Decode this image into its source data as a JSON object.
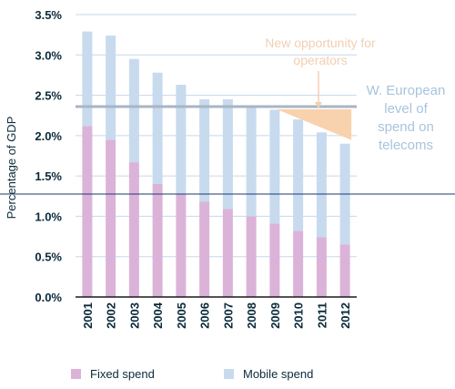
{
  "chart_data": {
    "type": "bar",
    "stacked": true,
    "categories": [
      "2001",
      "2002",
      "2003",
      "2004",
      "2005",
      "2006",
      "2007",
      "2008",
      "2009",
      "2010",
      "2011",
      "2012"
    ],
    "series": [
      {
        "name": "Fixed spend",
        "color": "#dcb3d8",
        "values": [
          2.12,
          1.95,
          1.67,
          1.4,
          1.28,
          1.18,
          1.09,
          1.0,
          0.91,
          0.82,
          0.74,
          0.65
        ]
      },
      {
        "name": "Mobile spend",
        "color": "#c8daee",
        "values": [
          1.17,
          1.29,
          1.28,
          1.38,
          1.35,
          1.27,
          1.36,
          1.37,
          1.41,
          1.38,
          1.3,
          1.25
        ]
      }
    ],
    "ylabel": "Percentage of GDP",
    "ylim": [
      0,
      3.5
    ],
    "yticks": [
      "0.0%",
      "0.5%",
      "1.0%",
      "1.5%",
      "2.0%",
      "2.5%",
      "3.0%",
      "3.5%"
    ],
    "grid": true,
    "legend_position": "bottom",
    "reference_line": {
      "value": 2.36,
      "color": "#a8b5c4"
    },
    "annotations": {
      "reference_label": [
        "W. European",
        "level of",
        "spend on",
        "telecoms"
      ],
      "opportunity_label": [
        "New opportunity for",
        "operators"
      ]
    },
    "colors": {
      "grid": "#c6d8ea",
      "axis": "#1a1a1a",
      "text": "#0a2a3a",
      "reference_text": "#a8c4dc",
      "opportunity": "#f7d2ad",
      "opportunity_text": "#f2cfb2",
      "crosshair": "#1e3a6e"
    }
  }
}
